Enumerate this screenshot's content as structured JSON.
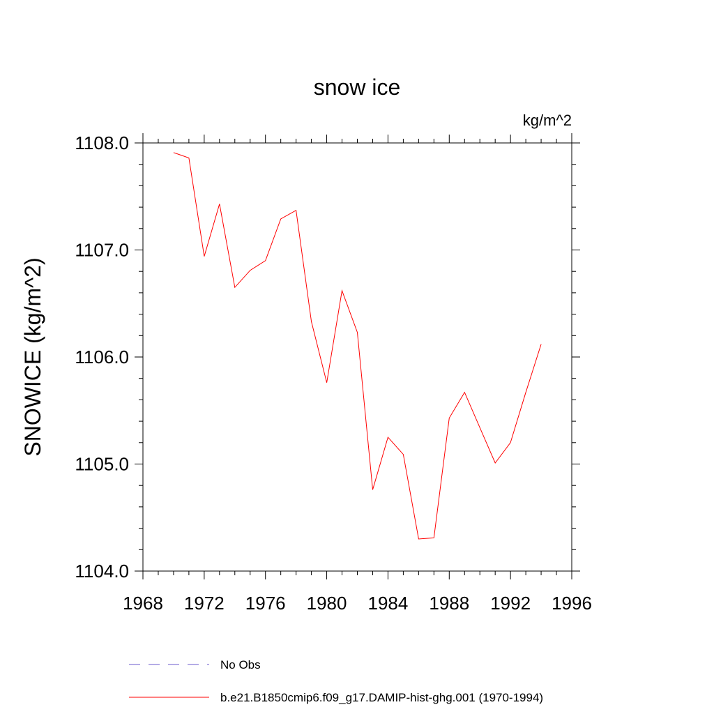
{
  "chart_data": {
    "type": "line",
    "title": "snow ice",
    "units_label": "kg/m^2",
    "xlabel": "",
    "ylabel": "SNOWICE  (kg/m^2)",
    "xlim": [
      1968,
      1996
    ],
    "ylim": [
      1104.0,
      1108.0
    ],
    "x_ticks": [
      1968,
      1972,
      1976,
      1980,
      1984,
      1988,
      1992,
      1996
    ],
    "x_tick_labels": [
      "1968",
      "1972",
      "1976",
      "1980",
      "1984",
      "1988",
      "1992",
      "1996"
    ],
    "y_ticks": [
      1104.0,
      1105.0,
      1106.0,
      1107.0,
      1108.0
    ],
    "y_tick_labels": [
      "1104.0",
      "1105.0",
      "1106.0",
      "1107.0",
      "1108.0"
    ],
    "grid": false,
    "legend_position": "bottom",
    "series": [
      {
        "name": "No Obs",
        "color": "#6a5acd",
        "dash": "dashed",
        "x": [],
        "values": []
      },
      {
        "name": "b.e21.B1850cmip6.f09_g17.DAMIP-hist-ghg.001 (1970-1994)",
        "color": "#ff0000",
        "dash": "solid",
        "x": [
          1970,
          1971,
          1972,
          1973,
          1974,
          1975,
          1976,
          1977,
          1978,
          1979,
          1980,
          1981,
          1982,
          1983,
          1984,
          1985,
          1986,
          1987,
          1988,
          1989,
          1990,
          1991,
          1992,
          1993,
          1994
        ],
        "values": [
          1107.91,
          1107.86,
          1106.94,
          1107.43,
          1106.65,
          1106.81,
          1106.9,
          1107.29,
          1107.37,
          1106.33,
          1105.76,
          1106.62,
          1106.23,
          1104.76,
          1105.25,
          1105.09,
          1104.3,
          1104.31,
          1105.43,
          1105.67,
          1105.34,
          1105.01,
          1105.2,
          1105.67,
          1106.12
        ]
      }
    ]
  }
}
